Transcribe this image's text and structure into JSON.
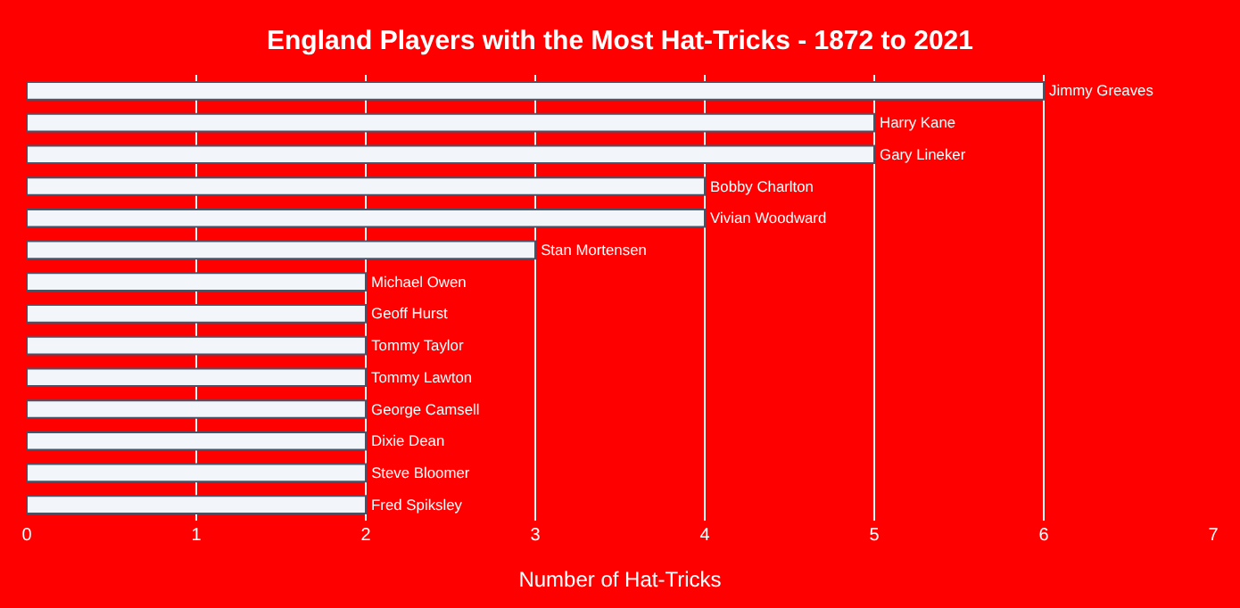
{
  "chart_data": {
    "type": "bar",
    "orientation": "horizontal",
    "title": "England Players with the Most Hat-Tricks - 1872 to 2021",
    "xlabel": "Number of Hat-Tricks",
    "categories": [
      "Jimmy Greaves",
      "Harry Kane",
      "Gary Lineker",
      "Bobby Charlton",
      "Vivian Woodward",
      "Stan Mortensen",
      "Michael Owen",
      "Geoff Hurst",
      "Tommy Taylor",
      "Tommy Lawton",
      "George Camsell",
      "Dixie Dean",
      "Steve Bloomer",
      "Fred Spiksley"
    ],
    "values": [
      6,
      5,
      5,
      4,
      4,
      3,
      2,
      2,
      2,
      2,
      2,
      2,
      2,
      2
    ],
    "color": "#f2f6fa",
    "xlim": [
      0,
      7
    ],
    "xticks": [
      0,
      1,
      2,
      3,
      4,
      5,
      6,
      7
    ],
    "grid": "x",
    "tick_labels": "x"
  }
}
